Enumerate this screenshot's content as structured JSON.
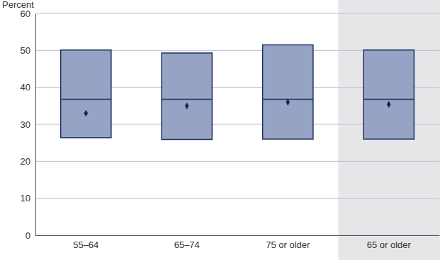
{
  "chart_data": {
    "type": "box",
    "y_label": "Percent",
    "categories": [
      "55–64",
      "65–74",
      "75 or older",
      "65 or older"
    ],
    "low": [
      26.4,
      25.9,
      26.0,
      26.0
    ],
    "high": [
      50.1,
      49.3,
      51.5,
      50.1
    ],
    "median": [
      36.8,
      36.8,
      36.8,
      36.8
    ],
    "mean": [
      33.0,
      35.0,
      36.0,
      35.4
    ],
    "color": "#97a3c4",
    "ylim": [
      0,
      60
    ],
    "yticks": [
      0,
      10,
      20,
      30,
      40,
      50,
      60
    ],
    "grid": true
  }
}
